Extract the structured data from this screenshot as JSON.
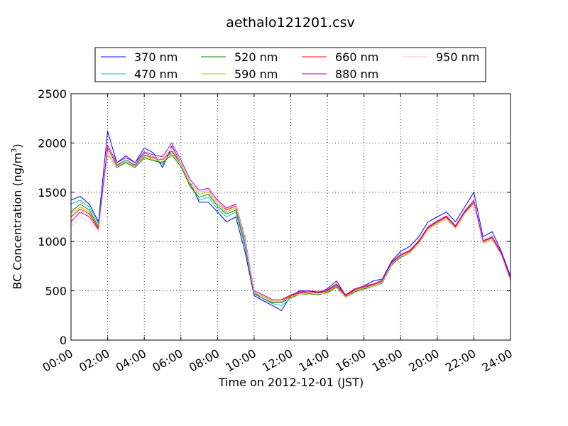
{
  "chart_data": {
    "type": "line",
    "title": "aethalo121201.csv",
    "xlabel": "Time on 2012-12-01 (JST)",
    "ylabel": "BC Concentration (ng/m",
    "ylabel_sup": "3",
    "ylabel_end": ")",
    "xlim": [
      "00:00",
      "24:00"
    ],
    "ylim": [
      0,
      2500
    ],
    "grid": true,
    "legend_position": "top",
    "x_ticks": [
      "00:00",
      "02:00",
      "04:00",
      "06:00",
      "08:00",
      "10:00",
      "12:00",
      "14:00",
      "16:00",
      "18:00",
      "20:00",
      "22:00",
      "24:00"
    ],
    "y_ticks": [
      "0",
      "500",
      "1000",
      "1500",
      "2000",
      "2500"
    ],
    "x": [
      "00:00",
      "00:30",
      "01:00",
      "01:30",
      "02:00",
      "02:30",
      "03:00",
      "03:30",
      "04:00",
      "04:30",
      "05:00",
      "05:30",
      "06:00",
      "06:30",
      "07:00",
      "07:30",
      "08:00",
      "08:30",
      "09:00",
      "09:30",
      "10:00",
      "10:30",
      "11:00",
      "11:30",
      "12:00",
      "12:30",
      "13:00",
      "13:30",
      "14:00",
      "14:30",
      "15:00",
      "15:30",
      "16:00",
      "16:30",
      "17:00",
      "17:30",
      "18:00",
      "18:30",
      "19:00",
      "19:30",
      "20:00",
      "20:30",
      "21:00",
      "21:30",
      "22:00",
      "22:30",
      "23:00",
      "23:30",
      "24:00"
    ],
    "series": [
      {
        "name": "370 nm",
        "color": "#0000ff",
        "values": [
          1420,
          1460,
          1380,
          1200,
          2120,
          1800,
          1870,
          1800,
          1950,
          1900,
          1750,
          1970,
          1800,
          1600,
          1400,
          1400,
          1300,
          1200,
          1250,
          900,
          450,
          400,
          350,
          300,
          450,
          500,
          500,
          480,
          520,
          600,
          450,
          520,
          550,
          600,
          620,
          800,
          900,
          950,
          1050,
          1200,
          1250,
          1300,
          1200,
          1350,
          1500,
          1050,
          1100,
          900,
          650
        ]
      },
      {
        "name": "470 nm",
        "color": "#00bfbf",
        "values": [
          1380,
          1420,
          1350,
          1180,
          1950,
          1780,
          1830,
          1780,
          1900,
          1860,
          1780,
          1920,
          1780,
          1580,
          1420,
          1450,
          1330,
          1250,
          1300,
          950,
          480,
          420,
          370,
          350,
          420,
          480,
          480,
          470,
          500,
          560,
          440,
          500,
          530,
          560,
          600,
          780,
          860,
          900,
          1000,
          1150,
          1200,
          1250,
          1150,
          1300,
          1420,
          1000,
          1050,
          880,
          620
        ]
      },
      {
        "name": "520 nm",
        "color": "#008000",
        "values": [
          1300,
          1380,
          1320,
          1150,
          1900,
          1750,
          1800,
          1750,
          1850,
          1820,
          1800,
          1880,
          1760,
          1560,
          1450,
          1480,
          1360,
          1280,
          1320,
          980,
          470,
          420,
          380,
          380,
          430,
          460,
          470,
          460,
          480,
          540,
          430,
          490,
          520,
          540,
          580,
          760,
          840,
          880,
          980,
          1120,
          1180,
          1230,
          1130,
          1280,
          1380,
          980,
          1020,
          860,
          600
        ]
      },
      {
        "name": "590 nm",
        "color": "#bfbf00",
        "values": [
          1280,
          1350,
          1300,
          1140,
          1880,
          1760,
          1810,
          1760,
          1860,
          1830,
          1810,
          1900,
          1780,
          1580,
          1480,
          1500,
          1380,
          1300,
          1340,
          1000,
          480,
          440,
          390,
          390,
          440,
          470,
          480,
          470,
          490,
          550,
          440,
          500,
          530,
          550,
          590,
          770,
          850,
          890,
          990,
          1130,
          1190,
          1240,
          1140,
          1290,
          1390,
          990,
          1030,
          870,
          610
        ]
      },
      {
        "name": "660 nm",
        "color": "#ff0000",
        "values": [
          1250,
          1330,
          1280,
          1130,
          1950,
          1770,
          1820,
          1770,
          1880,
          1850,
          1830,
          1920,
          1800,
          1600,
          1500,
          1520,
          1400,
          1320,
          1360,
          1020,
          490,
          450,
          400,
          400,
          450,
          480,
          490,
          480,
          500,
          560,
          450,
          510,
          540,
          560,
          600,
          780,
          860,
          900,
          1000,
          1140,
          1200,
          1250,
          1150,
          1300,
          1400,
          1000,
          1040,
          880,
          620
        ]
      },
      {
        "name": "880 nm",
        "color": "#bf00bf",
        "values": [
          1200,
          1300,
          1250,
          1120,
          1980,
          1800,
          1850,
          1800,
          1910,
          1880,
          1860,
          2000,
          1830,
          1630,
          1520,
          1540,
          1420,
          1340,
          1380,
          1040,
          500,
          460,
          410,
          410,
          460,
          490,
          500,
          490,
          510,
          570,
          460,
          520,
          550,
          570,
          610,
          790,
          870,
          910,
          1010,
          1150,
          1210,
          1260,
          1160,
          1310,
          1420,
          1010,
          1050,
          890,
          630
        ]
      },
      {
        "name": "950 nm",
        "color": "#ffc0cb",
        "values": [
          1150,
          1250,
          1200,
          1100,
          1900,
          1760,
          1820,
          1760,
          1870,
          1840,
          1840,
          1950,
          1800,
          1600,
          1500,
          1520,
          1400,
          1330,
          1370,
          1020,
          490,
          450,
          400,
          400,
          420,
          460,
          480,
          470,
          470,
          530,
          430,
          480,
          510,
          540,
          590,
          770,
          850,
          880,
          980,
          1120,
          1180,
          1230,
          1130,
          1280,
          1380,
          980,
          1020,
          860,
          600
        ]
      }
    ]
  }
}
